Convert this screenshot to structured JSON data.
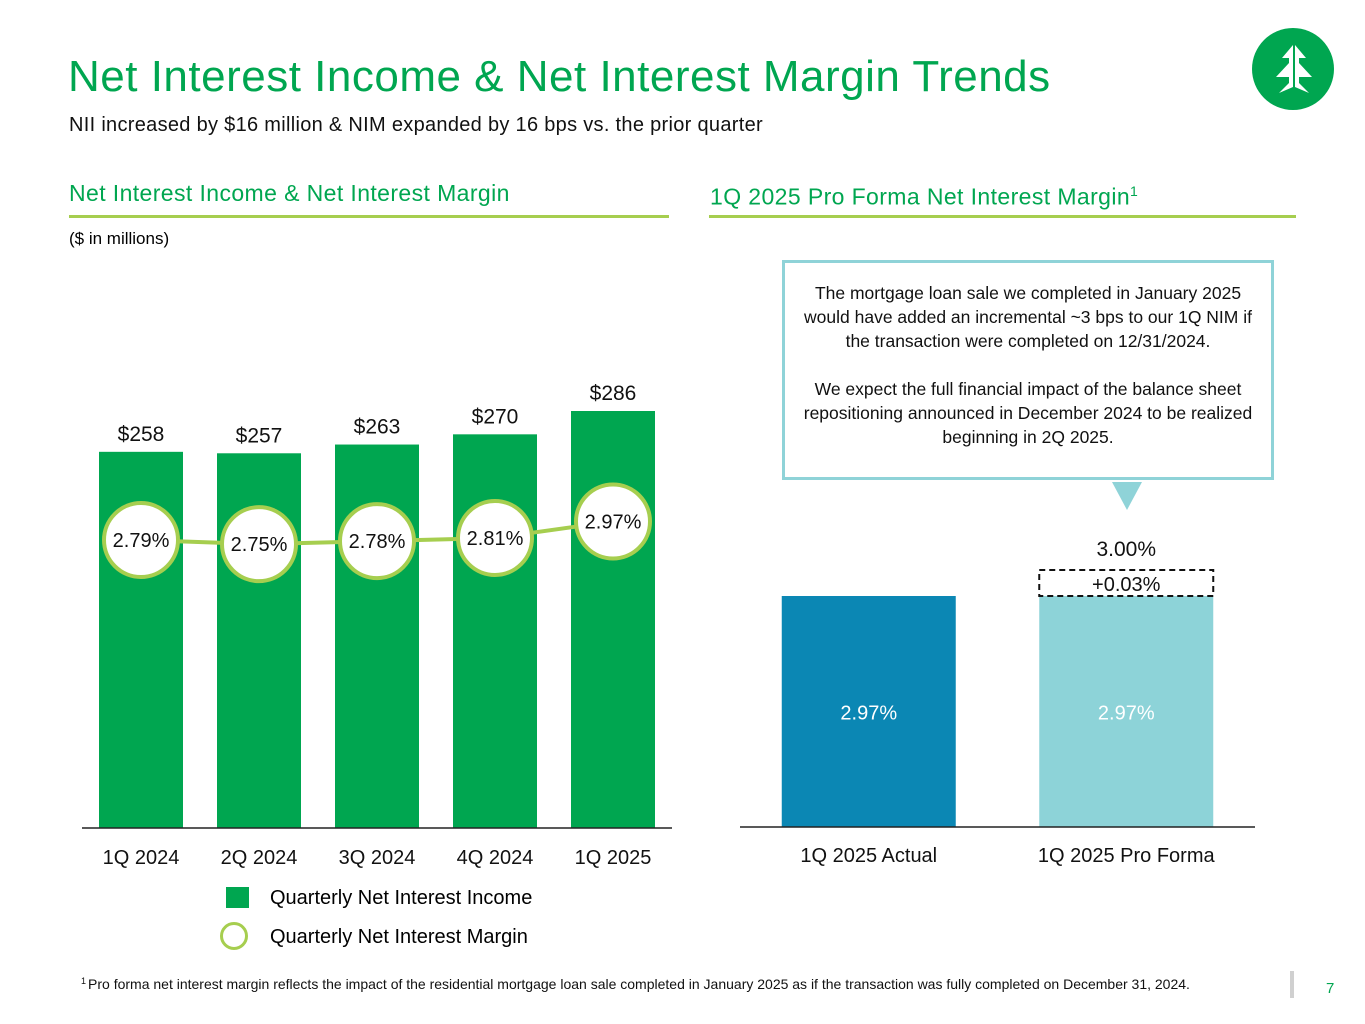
{
  "page": {
    "title": "Net Interest Income & Net Interest Margin Trends",
    "subtitle": "NII increased by $16 million & NIM expanded by 16 bps vs. the prior quarter",
    "page_number": "7",
    "logo_icon": "tree-logo-icon"
  },
  "left_section": {
    "heading": "Net Interest Income & Net Interest Margin",
    "units": "($ in millions)"
  },
  "right_section": {
    "heading": "1Q 2025 Pro Forma Net Interest Margin",
    "heading_sup": "1",
    "callout_p1": "The mortgage loan sale we completed in January 2025 would have added an incremental ~3 bps to our 1Q NIM if the transaction were completed on 12/31/2024.",
    "callout_p2": "We expect the full financial impact of the balance sheet repositioning announced in December 2024 to be realized beginning in 2Q 2025."
  },
  "legend": {
    "bar_label": "Quarterly Net Interest Income",
    "line_label": "Quarterly Net Interest Margin"
  },
  "footnote": {
    "marker": "1",
    "text": "Pro forma net interest margin reflects the impact of the residential mortgage loan sale completed in January 2025 as if the transaction was fully completed on December 31, 2024."
  },
  "colors": {
    "brand_green": "#00a650",
    "nim_line": "#a6ce4f",
    "actual_bar": "#0b87b4",
    "pro_forma_bar": "#8dd3d8"
  },
  "chart_data": [
    {
      "type": "bar",
      "title": "Net Interest Income & Net Interest Margin",
      "categories": [
        "1Q 2024",
        "2Q 2024",
        "3Q 2024",
        "4Q 2024",
        "1Q 2025"
      ],
      "series": [
        {
          "name": "Quarterly Net Interest Income",
          "type": "bar",
          "values": [
            258,
            257,
            263,
            270,
            286
          ],
          "labels": [
            "$258",
            "$257",
            "$263",
            "$270",
            "$286"
          ]
        },
        {
          "name": "Quarterly Net Interest Margin",
          "type": "line",
          "values": [
            2.79,
            2.75,
            2.78,
            2.81,
            2.97
          ],
          "labels": [
            "2.79%",
            "2.75%",
            "2.78%",
            "2.81%",
            "2.97%"
          ]
        }
      ],
      "ylabel": "($ in millions)",
      "ylim": [
        0,
        286
      ],
      "nim_ylim": [
        0,
        5.6
      ]
    },
    {
      "type": "bar",
      "title": "1Q 2025 Pro Forma Net Interest Margin",
      "categories": [
        "1Q 2025 Actual",
        "1Q 2025 Pro Forma"
      ],
      "values": [
        2.97,
        2.97
      ],
      "labels": [
        "2.97%",
        "2.97%"
      ],
      "increment": {
        "category": "1Q 2025 Pro Forma",
        "value": 0.03,
        "label": "+0.03%"
      },
      "total": {
        "category": "1Q 2025 Pro Forma",
        "value": 3.0,
        "label": "3.00%"
      },
      "ylim": [
        0,
        3.0
      ]
    }
  ]
}
